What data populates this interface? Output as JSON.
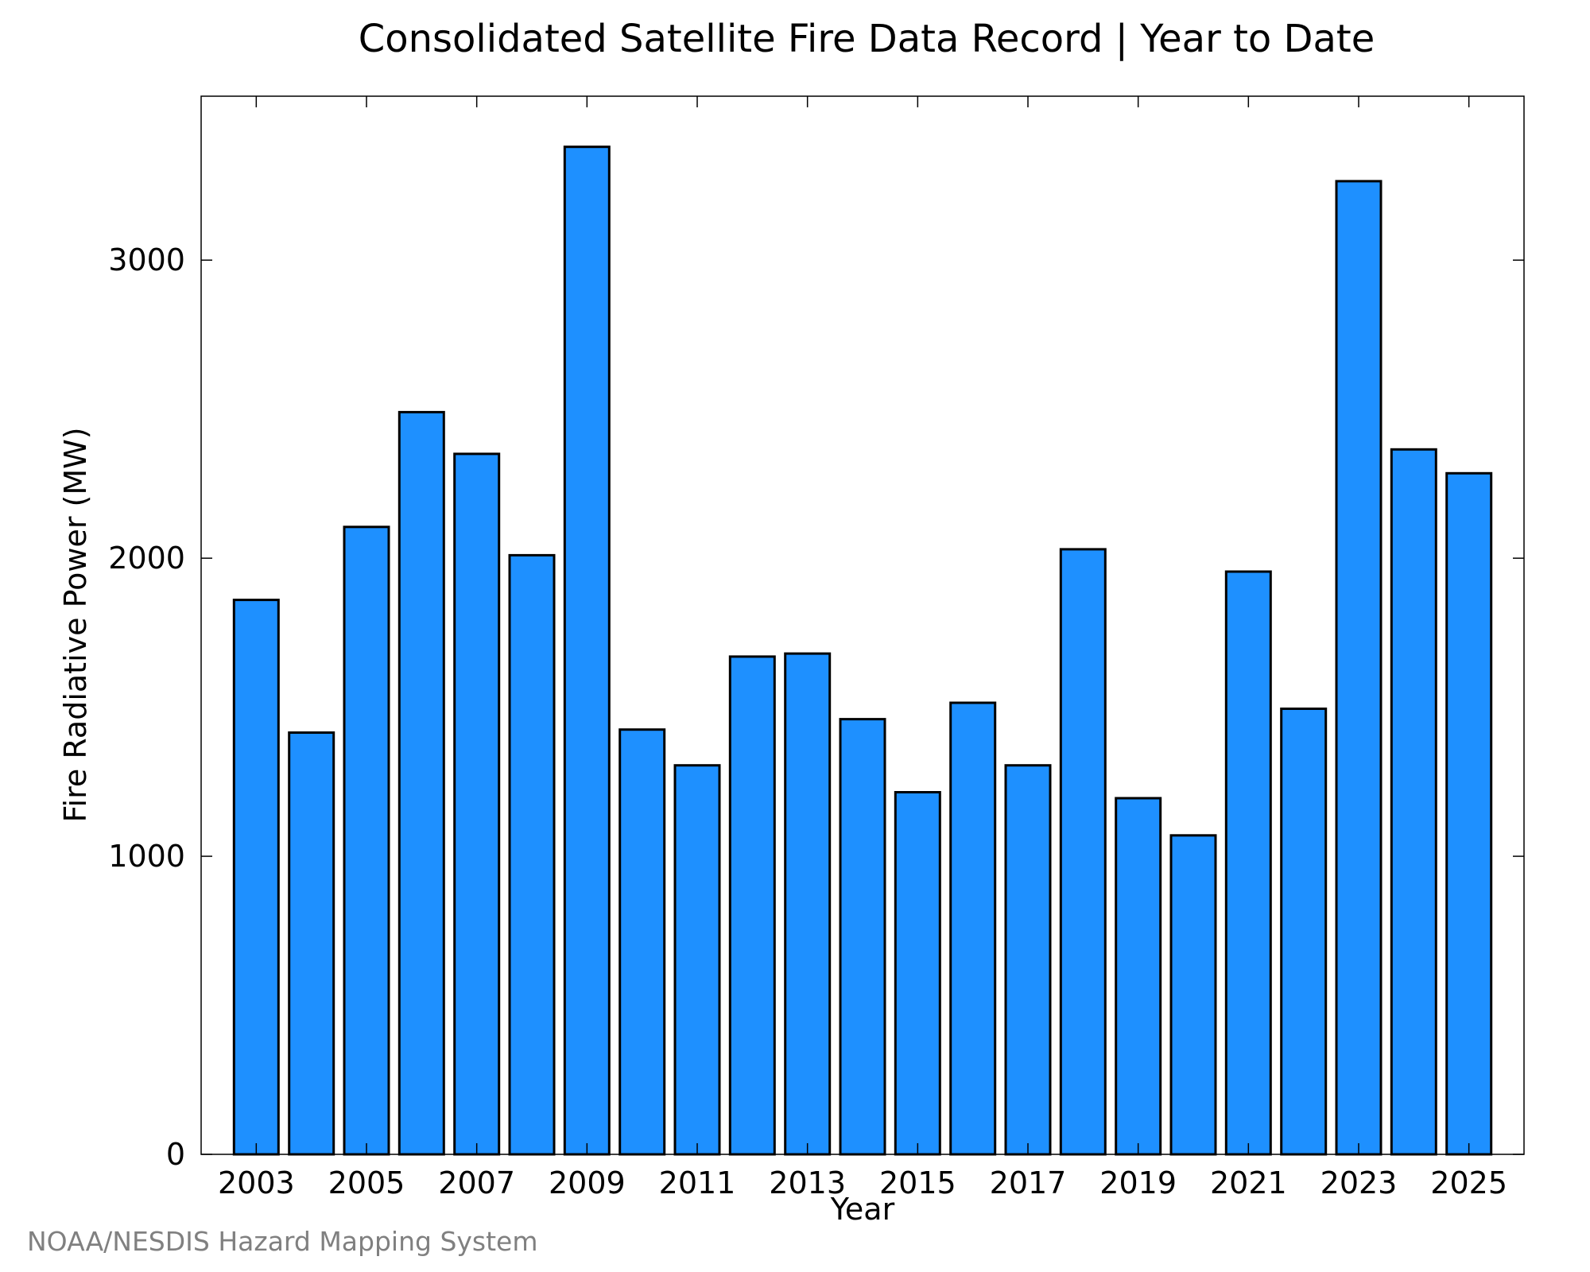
{
  "chart_data": {
    "type": "bar",
    "title": "Consolidated Satellite Fire Data Record | Year to Date",
    "xlabel": "Year",
    "ylabel": "Fire Radiative Power (MW)",
    "credit": "NOAA/NESDIS Hazard Mapping System",
    "categories": [
      2003,
      2004,
      2005,
      2006,
      2007,
      2008,
      2009,
      2010,
      2011,
      2012,
      2013,
      2014,
      2015,
      2016,
      2017,
      2018,
      2019,
      2020,
      2021,
      2022,
      2023,
      2024,
      2025
    ],
    "values": [
      1860,
      1415,
      2105,
      2490,
      2350,
      2010,
      3380,
      1425,
      1305,
      1670,
      1680,
      1460,
      1215,
      1515,
      1305,
      2030,
      1195,
      1070,
      1955,
      1495,
      3265,
      2365,
      2285
    ],
    "xlim": [
      2002.0,
      2026.0
    ],
    "ylim": [
      0,
      3550
    ],
    "xticks": [
      2003,
      2005,
      2007,
      2009,
      2011,
      2013,
      2015,
      2017,
      2019,
      2021,
      2023,
      2025
    ],
    "yticks": [
      0,
      1000,
      2000,
      3000
    ],
    "grid": false,
    "legend": "none",
    "bar_color": "#1E90FF",
    "edge_color": "#000000"
  }
}
